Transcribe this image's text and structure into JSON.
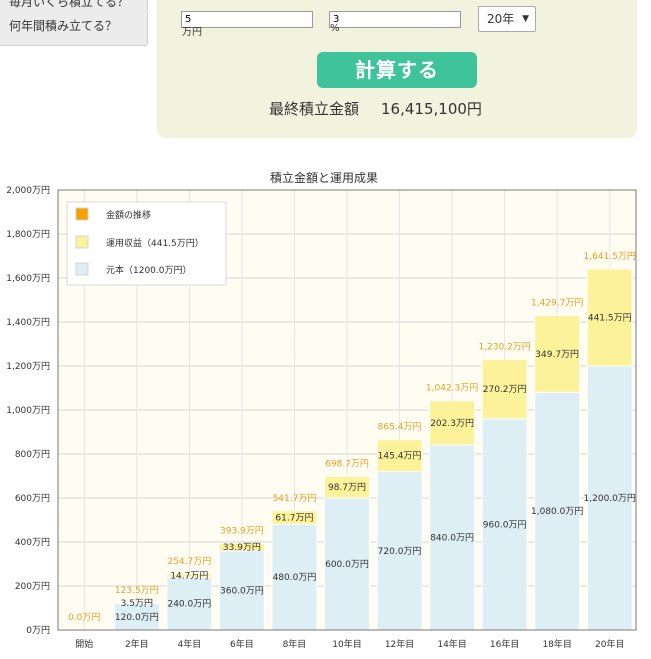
{
  "sidebar": {
    "question_1": "毎月いくら積立てる？",
    "question_2": "何年間積み立てる？"
  },
  "calculator": {
    "monthly_amount": "5",
    "monthly_unit": "万円",
    "rate": "3",
    "rate_unit": "%",
    "years_selected": "20年",
    "calculate_label": "計算する",
    "result_label": "最終積立金額",
    "result_amount": "16,415,100円"
  },
  "colors": {
    "panel": "#f2f3de",
    "button": "#3ec39b",
    "principal": "#ddeef4",
    "gain": "#fcf29a",
    "total_label": "#e8a021"
  },
  "chart_data": {
    "type": "bar",
    "stacked": true,
    "title": "積立金額と運用成果",
    "categories": [
      "開始",
      "2年目",
      "4年目",
      "6年目",
      "8年目",
      "10年目",
      "12年目",
      "14年目",
      "16年目",
      "18年目",
      "20年目"
    ],
    "series": [
      {
        "name": "元本（1200.0万円）",
        "values": [
          0,
          120.0,
          240.0,
          360.0,
          480.0,
          600.0,
          720.0,
          840.0,
          960.0,
          1080.0,
          1200.0
        ]
      },
      {
        "name": "運用収益（441.5万円）",
        "values": [
          0,
          3.5,
          14.7,
          33.9,
          61.7,
          98.7,
          145.4,
          202.3,
          270.2,
          349.7,
          441.5
        ]
      }
    ],
    "totals_series_name": "金額の推移",
    "value_labels": {
      "principal": [
        "",
        "120.0万円",
        "240.0万円",
        "360.0万円",
        "480.0万円",
        "600.0万円",
        "720.0万円",
        "840.0万円",
        "960.0万円",
        "1,080.0万円",
        "1,200.0万円"
      ],
      "gain": [
        "",
        "3.5万円",
        "14.7万円",
        "33.9万円",
        "61.7万円",
        "98.7万円",
        "145.4万円",
        "202.3万円",
        "270.2万円",
        "349.7万円",
        "441.5万円"
      ],
      "total": [
        "0.0万円",
        "123.5万円",
        "254.7万円",
        "393.9万円",
        "541.7万円",
        "698.7万円",
        "865.4万円",
        "1,042.3万円",
        "1,230.2万円",
        "1,429.7万円",
        "1,641.5万円"
      ]
    },
    "y_ticks": [
      "0万円",
      "200万円",
      "400万円",
      "600万円",
      "800万円",
      "1,000万円",
      "1,200万円",
      "1,400万円",
      "1,600万円",
      "1,800万円",
      "2,000万円"
    ],
    "ylim": [
      0,
      2000
    ],
    "grid": true,
    "legend_position": "top-left"
  }
}
